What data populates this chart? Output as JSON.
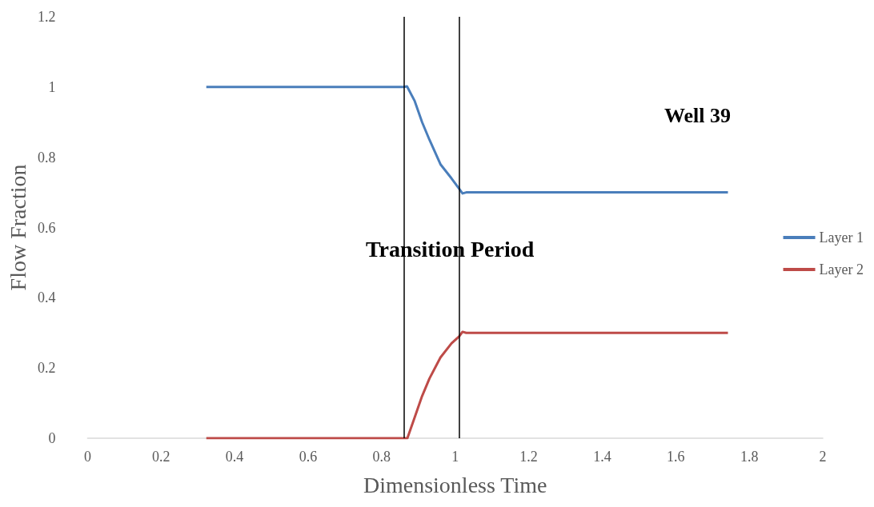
{
  "chart_data": {
    "type": "line",
    "xlabel": "Dimensionless Time",
    "ylabel": "Flow Fraction",
    "xlim": [
      0,
      2
    ],
    "xticks": [
      0,
      0.2,
      0.4,
      0.6,
      0.8,
      1,
      1.2,
      1.4,
      1.6,
      1.8,
      2
    ],
    "ylim": [
      0,
      1.2
    ],
    "yticks": [
      0,
      0.2,
      0.4,
      0.6,
      0.8,
      1,
      1.2
    ],
    "grid": false,
    "legend": "right",
    "marker": "none",
    "line_style": "solid",
    "annotations": [
      "Transition Period",
      "Well 39"
    ],
    "ref_lines": [
      {
        "axis": "x",
        "value": 0.865,
        "color": "#000000"
      },
      {
        "axis": "x",
        "value": 1.011,
        "color": "#000000"
      }
    ],
    "series": [
      {
        "name": "Layer 1",
        "color": "#4a7ebb",
        "x": [
          0.323,
          0.6,
          0.86,
          0.869,
          0.89,
          0.91,
          0.93,
          0.96,
          0.99,
          1.011,
          1.02,
          1.03,
          1.2,
          1.5,
          1.742
        ],
        "values": [
          1,
          1,
          1,
          1.002,
          0.96,
          0.9,
          0.85,
          0.78,
          0.74,
          0.71,
          0.697,
          0.7,
          0.7,
          0.7,
          0.7
        ]
      },
      {
        "name": "Layer 2",
        "color": "#be4b48",
        "x": [
          0.323,
          0.6,
          0.865,
          0.87,
          0.89,
          0.91,
          0.93,
          0.96,
          0.99,
          1.011,
          1.02,
          1.03,
          1.2,
          1.5,
          1.742
        ],
        "values": [
          0,
          0,
          0,
          0,
          0.06,
          0.12,
          0.17,
          0.23,
          0.27,
          0.29,
          0.303,
          0.3,
          0.3,
          0.3,
          0.3
        ]
      }
    ]
  }
}
